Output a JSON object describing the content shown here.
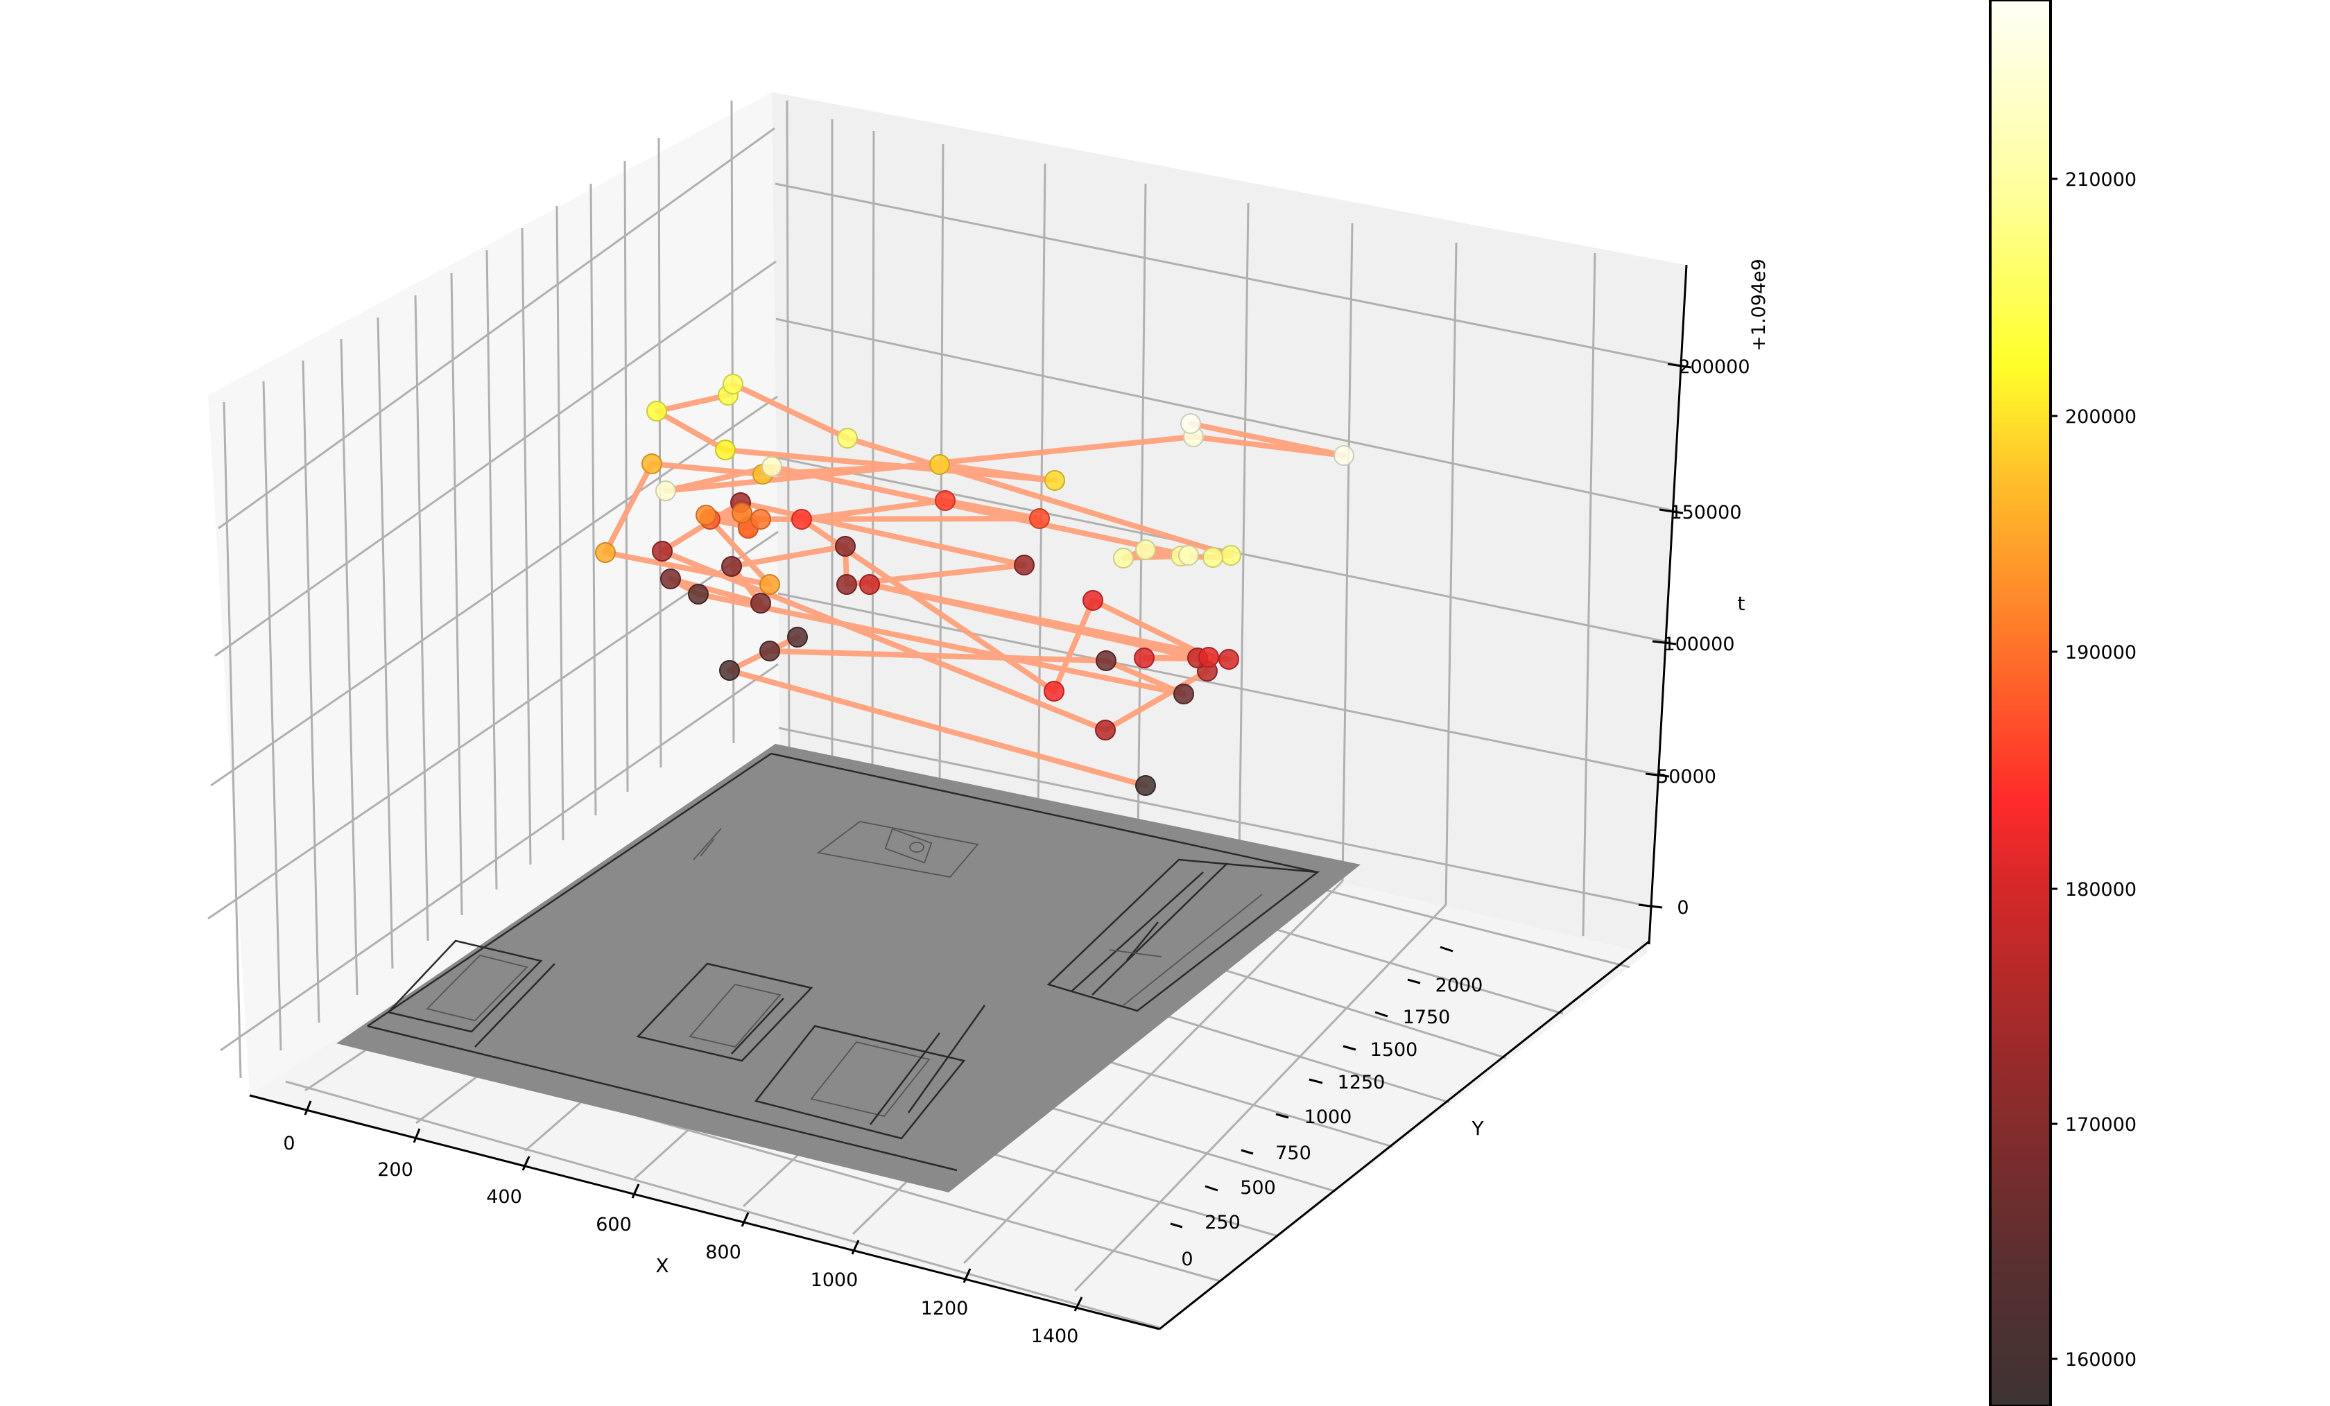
{
  "chart_data": {
    "type": "scatter3d_trajectory",
    "title": "",
    "xlabel": "X",
    "ylabel": "Y",
    "zlabel": "t",
    "z_offset_label": "+1.094e9",
    "x_ticks": [
      "0",
      "200",
      "400",
      "600",
      "800",
      "1000",
      "1200",
      "1400"
    ],
    "y_ticks": [
      "0",
      "250",
      "500",
      "750",
      "1000",
      "1250",
      "1500",
      "1750",
      "2000"
    ],
    "z_ticks": [
      "0",
      "50000",
      "100000",
      "150000",
      "200000"
    ],
    "xlim": [
      0,
      1500
    ],
    "ylim": [
      0,
      2100
    ],
    "zlim": [
      0,
      225000
    ],
    "grid": true,
    "floor_image": "grayscale architectural floor-plan drawing mapped onto z=0 plane (X 0–1400, Y 0–2000)",
    "line_color": "#ffa07a",
    "colormap": "hot",
    "colorbar": {
      "ticks": [
        "160000",
        "170000",
        "180000",
        "190000",
        "200000",
        "210000"
      ],
      "range": [
        157000,
        217500
      ]
    },
    "points_note": "Approximate trajectory vertices; t values read from colour (colorbar) and z-axis height, offset +1.094e9",
    "points": [
      {
        "t": 158500,
        "px": [
          1652,
          1133
        ]
      },
      {
        "t": 160000,
        "px": [
          1052,
          967
        ]
      },
      {
        "t": 162000,
        "px": [
          1150,
          919
        ]
      },
      {
        "t": 164000,
        "px": [
          1110,
          939
        ]
      },
      {
        "t": 166000,
        "px": [
          1595,
          953
        ]
      },
      {
        "t": 165000,
        "px": [
          1707,
          1001
        ]
      },
      {
        "t": 163000,
        "px": [
          1007,
          857
        ]
      },
      {
        "t": 167000,
        "px": [
          967,
          835
        ]
      },
      {
        "t": 168000,
        "px": [
          1097,
          870
        ]
      },
      {
        "t": 169000,
        "px": [
          1055,
          817
        ]
      },
      {
        "t": 170000,
        "px": [
          1219,
          788
        ]
      },
      {
        "t": 171000,
        "px": [
          1221,
          843
        ]
      },
      {
        "t": 172000,
        "px": [
          1477,
          815
        ]
      },
      {
        "t": 173000,
        "px": [
          1068,
          725
        ]
      },
      {
        "t": 174000,
        "px": [
          955,
          795
        ]
      },
      {
        "t": 175000,
        "px": [
          1594,
          1053
        ]
      },
      {
        "t": 176000,
        "px": [
          1741,
          968
        ]
      },
      {
        "t": 177000,
        "px": [
          1727,
          949
        ]
      },
      {
        "t": 178000,
        "px": [
          1254,
          843
        ]
      },
      {
        "t": 179000,
        "px": [
          1772,
          951
        ]
      },
      {
        "t": 180000,
        "px": [
          1650,
          949
        ]
      },
      {
        "t": 180500,
        "px": [
          1743,
          948
        ]
      },
      {
        "t": 181000,
        "px": [
          1576,
          866
        ]
      },
      {
        "t": 182000,
        "px": [
          1520,
          997
        ]
      },
      {
        "t": 184000,
        "px": [
          1156,
          749
        ]
      },
      {
        "t": 185000,
        "px": [
          1363,
          722
        ]
      },
      {
        "t": 186000,
        "px": [
          1499,
          748
        ]
      },
      {
        "t": 187000,
        "px": [
          1024,
          749
        ]
      },
      {
        "t": 188000,
        "px": [
          1079,
          760
        ]
      },
      {
        "t": 189000,
        "px": [
          1079,
          762
        ]
      },
      {
        "t": 190000,
        "px": [
          1097,
          749
        ]
      },
      {
        "t": 191000,
        "px": [
          1070,
          740
        ]
      },
      {
        "t": 192000,
        "px": [
          1018,
          743
        ]
      },
      {
        "t": 194000,
        "px": [
          1110,
          843
        ]
      },
      {
        "t": 195000,
        "px": [
          873,
          797
        ]
      },
      {
        "t": 196000,
        "px": [
          940,
          669
        ]
      },
      {
        "t": 197000,
        "px": [
          1100,
          684
        ]
      },
      {
        "t": 198000,
        "px": [
          1355,
          670
        ]
      },
      {
        "t": 199000,
        "px": [
          1521,
          693
        ]
      },
      {
        "t": 201000,
        "px": [
          1046,
          649
        ]
      },
      {
        "t": 203000,
        "px": [
          947,
          593
        ]
      },
      {
        "t": 204000,
        "px": [
          1050,
          570
        ]
      },
      {
        "t": 205000,
        "px": [
          1057,
          554
        ]
      },
      {
        "t": 206000,
        "px": [
          1222,
          632
        ]
      },
      {
        "t": 207000,
        "px": [
          1775,
          801
        ]
      },
      {
        "t": 208000,
        "px": [
          1749,
          804
        ]
      },
      {
        "t": 209000,
        "px": [
          1703,
          802
        ]
      },
      {
        "t": 210000,
        "px": [
          1620,
          805
        ]
      },
      {
        "t": 211000,
        "px": [
          1652,
          793
        ]
      },
      {
        "t": 212000,
        "px": [
          1714,
          801
        ]
      },
      {
        "t": 213000,
        "px": [
          1113,
          673
        ]
      },
      {
        "t": 214000,
        "px": [
          960,
          708
        ]
      },
      {
        "t": 215000,
        "px": [
          1721,
          630
        ]
      },
      {
        "t": 216000,
        "px": [
          1938,
          657
        ]
      },
      {
        "t": 217000,
        "px": [
          1717,
          611
        ]
      }
    ]
  }
}
